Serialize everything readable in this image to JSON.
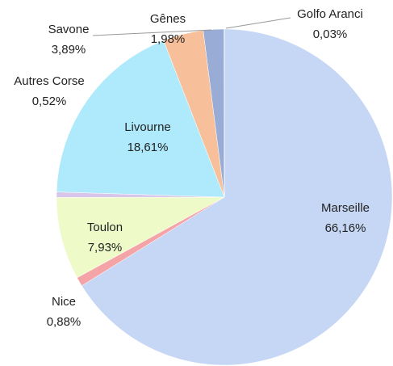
{
  "chart_data": {
    "type": "pie",
    "categories": [
      "Marseille",
      "Nice",
      "Toulon",
      "Autres Corse",
      "Livourne",
      "Savone",
      "Gênes",
      "Golfo Aranci"
    ],
    "values": [
      66.16,
      0.88,
      7.93,
      0.52,
      18.61,
      3.89,
      1.98,
      0.03
    ],
    "value_labels": [
      "66,16%",
      "0,88%",
      "7,93%",
      "0,52%",
      "18,61%",
      "3,89%",
      "1,98%",
      "0,03%"
    ],
    "colors": [
      "#c6d7f5",
      "#f4a3a6",
      "#effac9",
      "#d8c6ea",
      "#aeeafb",
      "#f8c09a",
      "#98acd6",
      "#4a5a80"
    ]
  }
}
